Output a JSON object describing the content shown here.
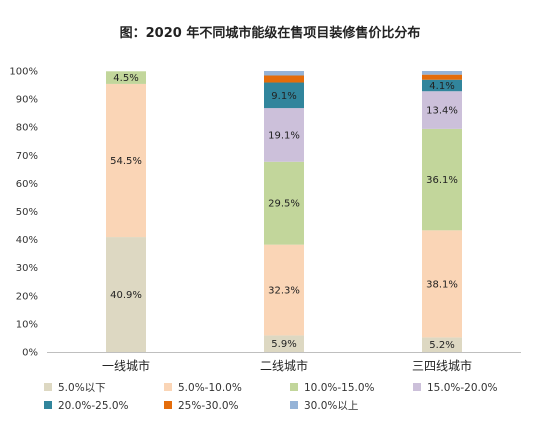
{
  "chart_data": {
    "type": "bar",
    "stacked": true,
    "title": "图：2020 年不同城市能级在售项目装修售价比分布",
    "xlabel": "",
    "ylabel": "",
    "ylim": [
      0,
      100
    ],
    "yticks": [
      "0%",
      "10%",
      "20%",
      "30%",
      "40%",
      "50%",
      "60%",
      "70%",
      "80%",
      "90%",
      "100%"
    ],
    "categories": [
      "一线城市",
      "二线城市",
      "三四线城市"
    ],
    "legend_position": "bottom",
    "series": [
      {
        "name": "5.0%以下",
        "color": "#DDD8C2",
        "values": [
          40.9,
          5.9,
          5.2
        ],
        "labels": [
          "40.9%",
          "5.9%",
          "5.2%"
        ]
      },
      {
        "name": "5.0%-10.0%",
        "color": "#FAD5B6",
        "values": [
          54.5,
          32.3,
          38.1
        ],
        "labels": [
          "54.5%",
          "32.3%",
          "38.1%"
        ]
      },
      {
        "name": "10.0%-15.0%",
        "color": "#C2D69B",
        "values": [
          4.5,
          29.5,
          36.1
        ],
        "labels": [
          "4.5%",
          "29.5%",
          "36.1%"
        ]
      },
      {
        "name": "15.0%-20.0%",
        "color": "#CCC0DA",
        "values": [
          0,
          19.1,
          13.4
        ],
        "labels": [
          "",
          "19.1%",
          "13.4%"
        ]
      },
      {
        "name": "20.0%-25.0%",
        "color": "#31859C",
        "values": [
          0,
          9.1,
          4.1
        ],
        "labels": [
          "",
          "9.1%",
          "4.1%"
        ]
      },
      {
        "name": "25%-30.0%",
        "color": "#E46C0A",
        "values": [
          0,
          2.5,
          1.8
        ],
        "labels": [
          "",
          "",
          ""
        ]
      },
      {
        "name": "30.0%以上",
        "color": "#95B3D7",
        "values": [
          0,
          1.6,
          1.3
        ],
        "labels": [
          "",
          "",
          ""
        ]
      }
    ]
  }
}
